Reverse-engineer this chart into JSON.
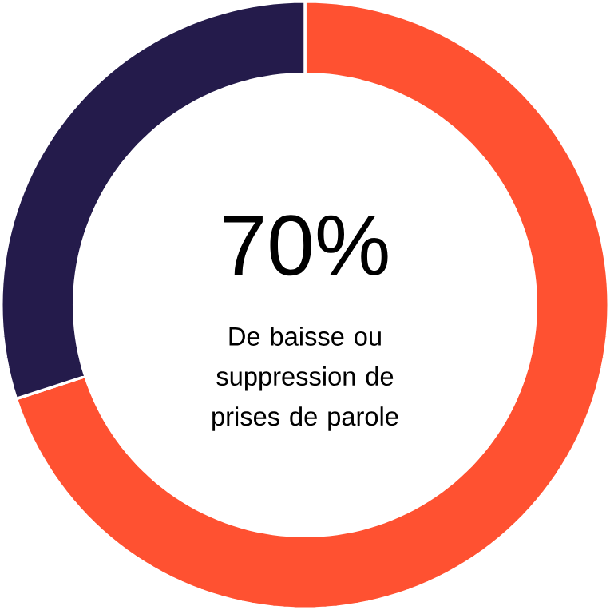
{
  "chart_data": {
    "type": "donut",
    "categories": [
      null,
      null
    ],
    "values": [
      70,
      30
    ],
    "colors": [
      "#ff5131",
      "#241b4b"
    ],
    "value_labels": [
      "70%",
      null
    ],
    "annotations": [
      "De baisse ou suppression de prises de parole"
    ]
  }
}
